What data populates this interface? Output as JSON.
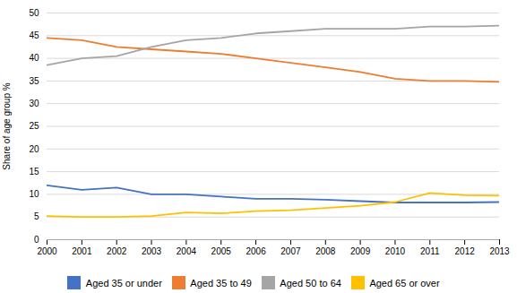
{
  "chart_data": {
    "type": "line",
    "x": [
      2000,
      2001,
      2002,
      2003,
      2004,
      2005,
      2006,
      2007,
      2008,
      2009,
      2010,
      2011,
      2012,
      2013
    ],
    "xlim": [
      2000,
      2013
    ],
    "xticks": [
      2000,
      2001,
      2002,
      2003,
      2004,
      2005,
      2006,
      2007,
      2008,
      2009,
      2010,
      2011,
      2012,
      2013
    ],
    "ylabel": "Share of age group %",
    "ylim": [
      0,
      50
    ],
    "yticks": [
      0,
      5,
      10,
      15,
      20,
      25,
      30,
      35,
      40,
      45,
      50
    ],
    "grid": true,
    "legend": "bottom",
    "series": [
      {
        "name": "Aged 35 or under",
        "color": "#4472c4",
        "values": [
          12.0,
          11.0,
          11.5,
          10.0,
          10.0,
          9.5,
          9.0,
          9.0,
          8.8,
          8.5,
          8.2,
          8.2,
          8.2,
          8.3
        ]
      },
      {
        "name": "Aged 35 to 49",
        "color": "#ed7d31",
        "values": [
          44.5,
          44.0,
          42.5,
          42.0,
          41.5,
          41.0,
          40.0,
          39.0,
          38.0,
          37.0,
          35.5,
          35.0,
          35.0,
          34.8
        ]
      },
      {
        "name": "Aged 50 to 64",
        "color": "#a5a5a5",
        "values": [
          38.5,
          40.0,
          40.5,
          42.5,
          44.0,
          44.5,
          45.5,
          46.0,
          46.5,
          46.5,
          46.5,
          47.0,
          47.0,
          47.2
        ]
      },
      {
        "name": "Aged 65 or over",
        "color": "#ffc000",
        "values": [
          5.2,
          5.0,
          5.0,
          5.2,
          6.0,
          5.8,
          6.3,
          6.5,
          7.0,
          7.5,
          8.3,
          10.3,
          9.8,
          9.7
        ]
      }
    ]
  }
}
